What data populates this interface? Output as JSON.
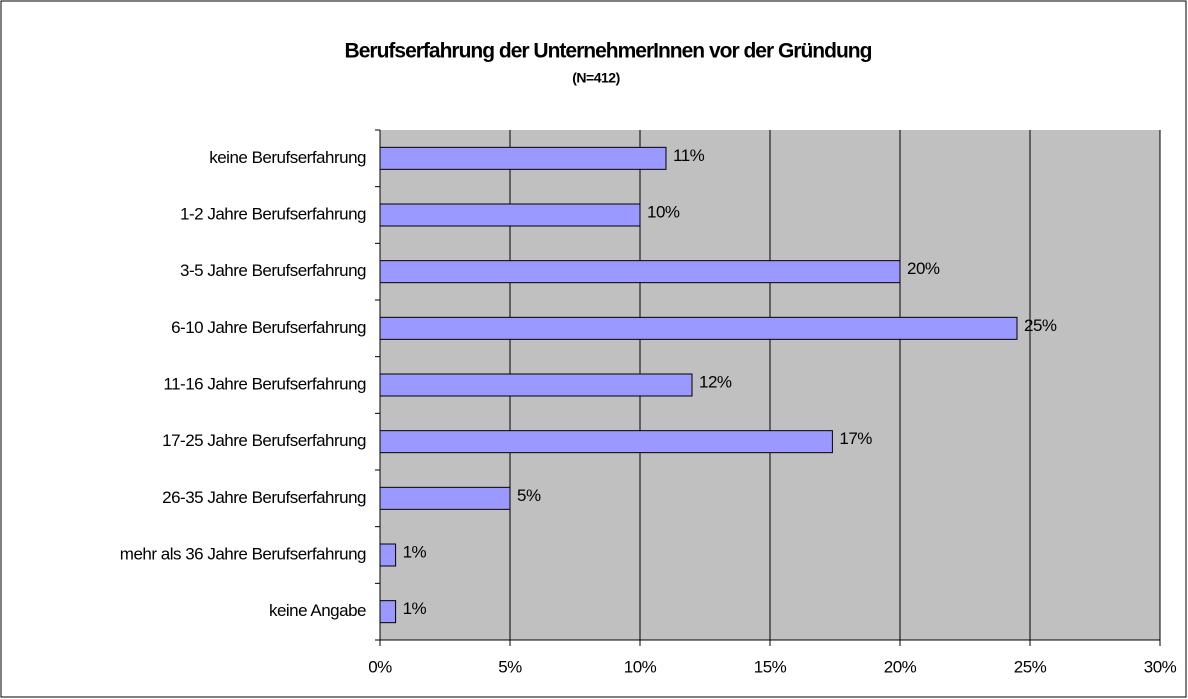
{
  "chart_data": {
    "type": "bar",
    "orientation": "horizontal",
    "title": "Berufserfahrung der UnternehmerInnen vor der Gründung",
    "subtitle": "(N=412)",
    "categories": [
      "keine Berufserfahrung",
      "1-2 Jahre Berufserfahrung",
      "3-5 Jahre Berufserfahrung",
      "6-10 Jahre Berufserfahrung",
      "11-16 Jahre Berufserfahrung",
      "17-25 Jahre Berufserfahrung",
      "26-35  Jahre Berufserfahrung",
      "mehr als 36 Jahre Berufserfahrung",
      "keine Angabe"
    ],
    "values": [
      11,
      10,
      20,
      24.5,
      12,
      17.4,
      5,
      0.6,
      0.6
    ],
    "value_labels": [
      "11%",
      "10%",
      "20%",
      "25%",
      "12%",
      "17%",
      "5%",
      "1%",
      "1%"
    ],
    "color": "#9999ff",
    "xlim": [
      0,
      30
    ],
    "xticks": [
      {
        "value": 0,
        "label": "0%"
      },
      {
        "value": 5,
        "label": "5%"
      },
      {
        "value": 10,
        "label": "10%"
      },
      {
        "value": 15,
        "label": "15%"
      },
      {
        "value": 20,
        "label": "20%"
      },
      {
        "value": 25,
        "label": "25%"
      },
      {
        "value": 30,
        "label": "30%"
      }
    ],
    "grid": true
  }
}
